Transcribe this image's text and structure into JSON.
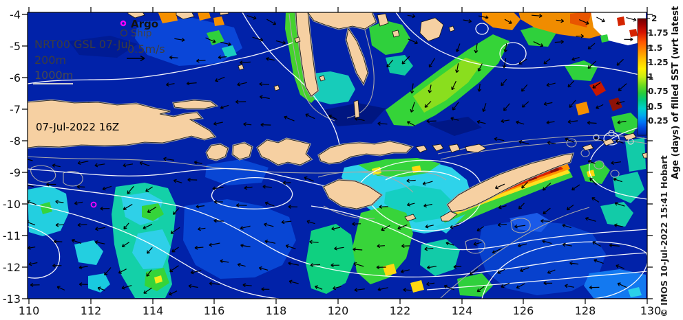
{
  "map_overlay": {
    "run_label": "NRT00 GSL 07-Jul",
    "depth_200": "200m",
    "depth_1000": "1000m",
    "speed_scale": "0.5m/s",
    "datetime": "07-Jul-2022 16Z",
    "legend": {
      "argo": "Argo",
      "ship": "Ship"
    }
  },
  "axes": {
    "x_ticks": [
      "110",
      "112",
      "114",
      "116",
      "118",
      "120",
      "122",
      "124",
      "126",
      "128",
      "130"
    ],
    "y_ticks": [
      "-4",
      "-5",
      "-6",
      "-7",
      "-8",
      "-9",
      "-10",
      "-11",
      "-12",
      "-13"
    ]
  },
  "colorbar": {
    "title": "Age (days) of filled SST (wrt latest",
    "tick_labels": [
      "2",
      "1.75",
      "1.5",
      "1.25",
      "1",
      "0.75",
      "0.5",
      "0.25"
    ],
    "value_range": [
      0,
      2
    ],
    "gradient_top_to_bottom": [
      "#6f0000",
      "#9e0000",
      "#d81400",
      "#ff5500",
      "#ff9000",
      "#ffc800",
      "#fff000",
      "#c8ee14",
      "#6edc1e",
      "#26cc3c",
      "#00c882",
      "#00d0cc",
      "#00aaee",
      "#0072f4",
      "#0046dc",
      "#0024aa"
    ]
  },
  "credit": "© IMOS 10-Jul-2022 15:41 Hobart",
  "colors": {
    "ocean": "#0122a9",
    "land": "#f6d0a2",
    "coast_halo": "#9f9f9f",
    "ssh_contour": "#ffffff",
    "bathy_contour": "#a9a9a9",
    "argo_marker": "#ff00ff",
    "arrow": "#000000"
  }
}
